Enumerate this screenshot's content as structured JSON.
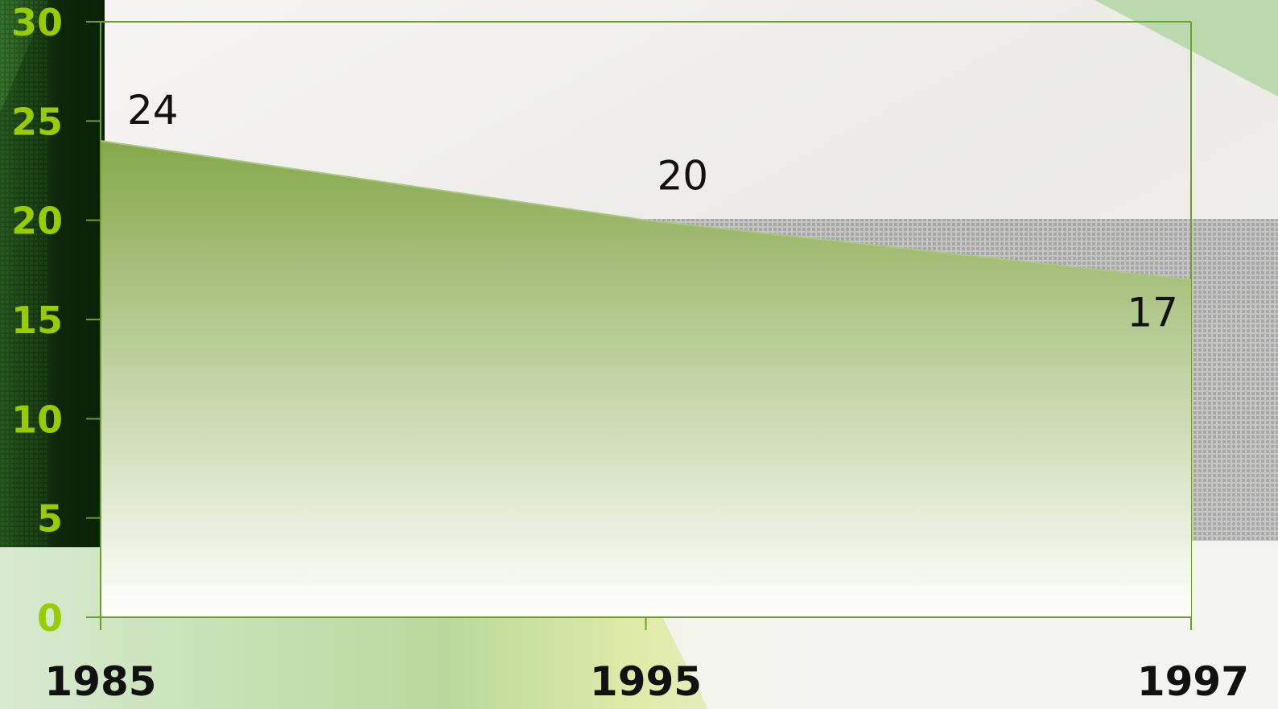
{
  "chart_data": {
    "type": "area",
    "categories": [
      "1985",
      "1995",
      "1997"
    ],
    "series": [
      {
        "values": [
          24,
          20,
          17
        ]
      }
    ],
    "data_labels": [
      "24",
      "20",
      "17"
    ],
    "y_ticks": [
      "0",
      "5",
      "10",
      "15",
      "20",
      "25",
      "30"
    ],
    "ylim": [
      0,
      30
    ],
    "grid": false,
    "legend": "none",
    "title": "",
    "xlabel": "",
    "ylabel": ""
  },
  "colors": {
    "area_top": "#86a84b",
    "area_bottom": "#ffffff",
    "axis": "#6aa121",
    "y_tick_text": "#99cc00",
    "x_tick_text": "#111111",
    "data_label_text": "#111111"
  }
}
